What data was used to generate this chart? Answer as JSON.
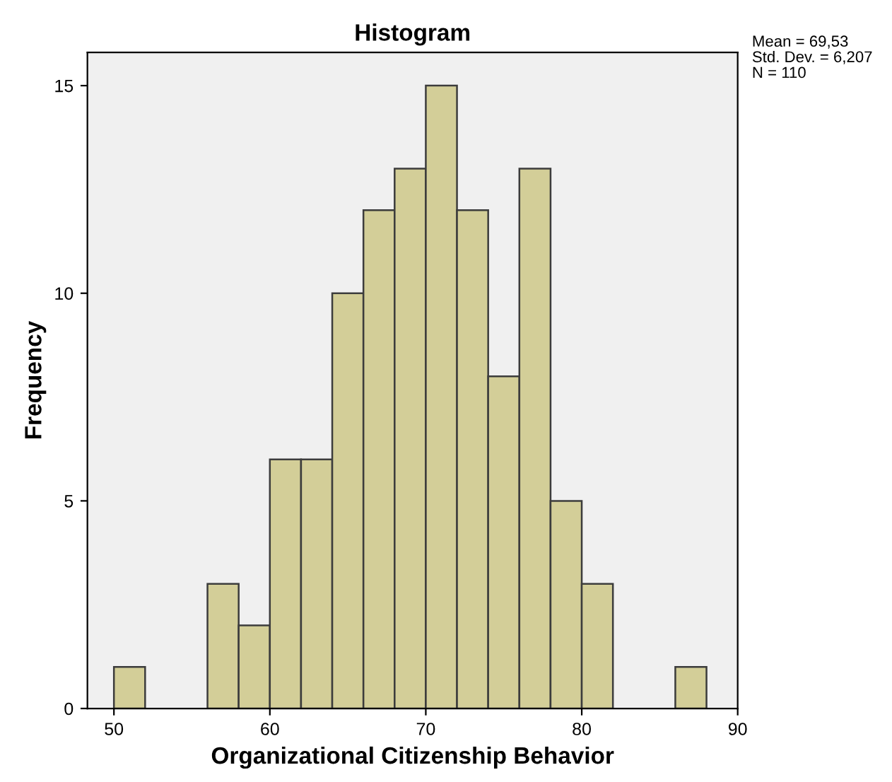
{
  "chart_data": {
    "type": "histogram",
    "title": "Histogram",
    "xlabel": "Organizational Citizenship Behavior",
    "ylabel": "Frequency",
    "bins": [
      50,
      52,
      54,
      56,
      58,
      60,
      62,
      64,
      66,
      68,
      70,
      72,
      74,
      76,
      78,
      80,
      82,
      84,
      86,
      88
    ],
    "values": [
      1,
      0,
      0,
      3,
      2,
      6,
      6,
      10,
      12,
      13,
      15,
      12,
      8,
      13,
      5,
      3,
      0,
      0,
      1
    ],
    "color": "#d3ce98",
    "xlim": [
      48.3,
      90
    ],
    "xticks": [
      50,
      60,
      70,
      80,
      90
    ],
    "ylim": [
      0,
      15.8
    ],
    "yticks": [
      0,
      5,
      10,
      15
    ],
    "grid": false,
    "legend": false,
    "annotations": [
      "Mean = 69,53",
      "Std. Dev. = 6,207",
      "N = 110"
    ]
  }
}
